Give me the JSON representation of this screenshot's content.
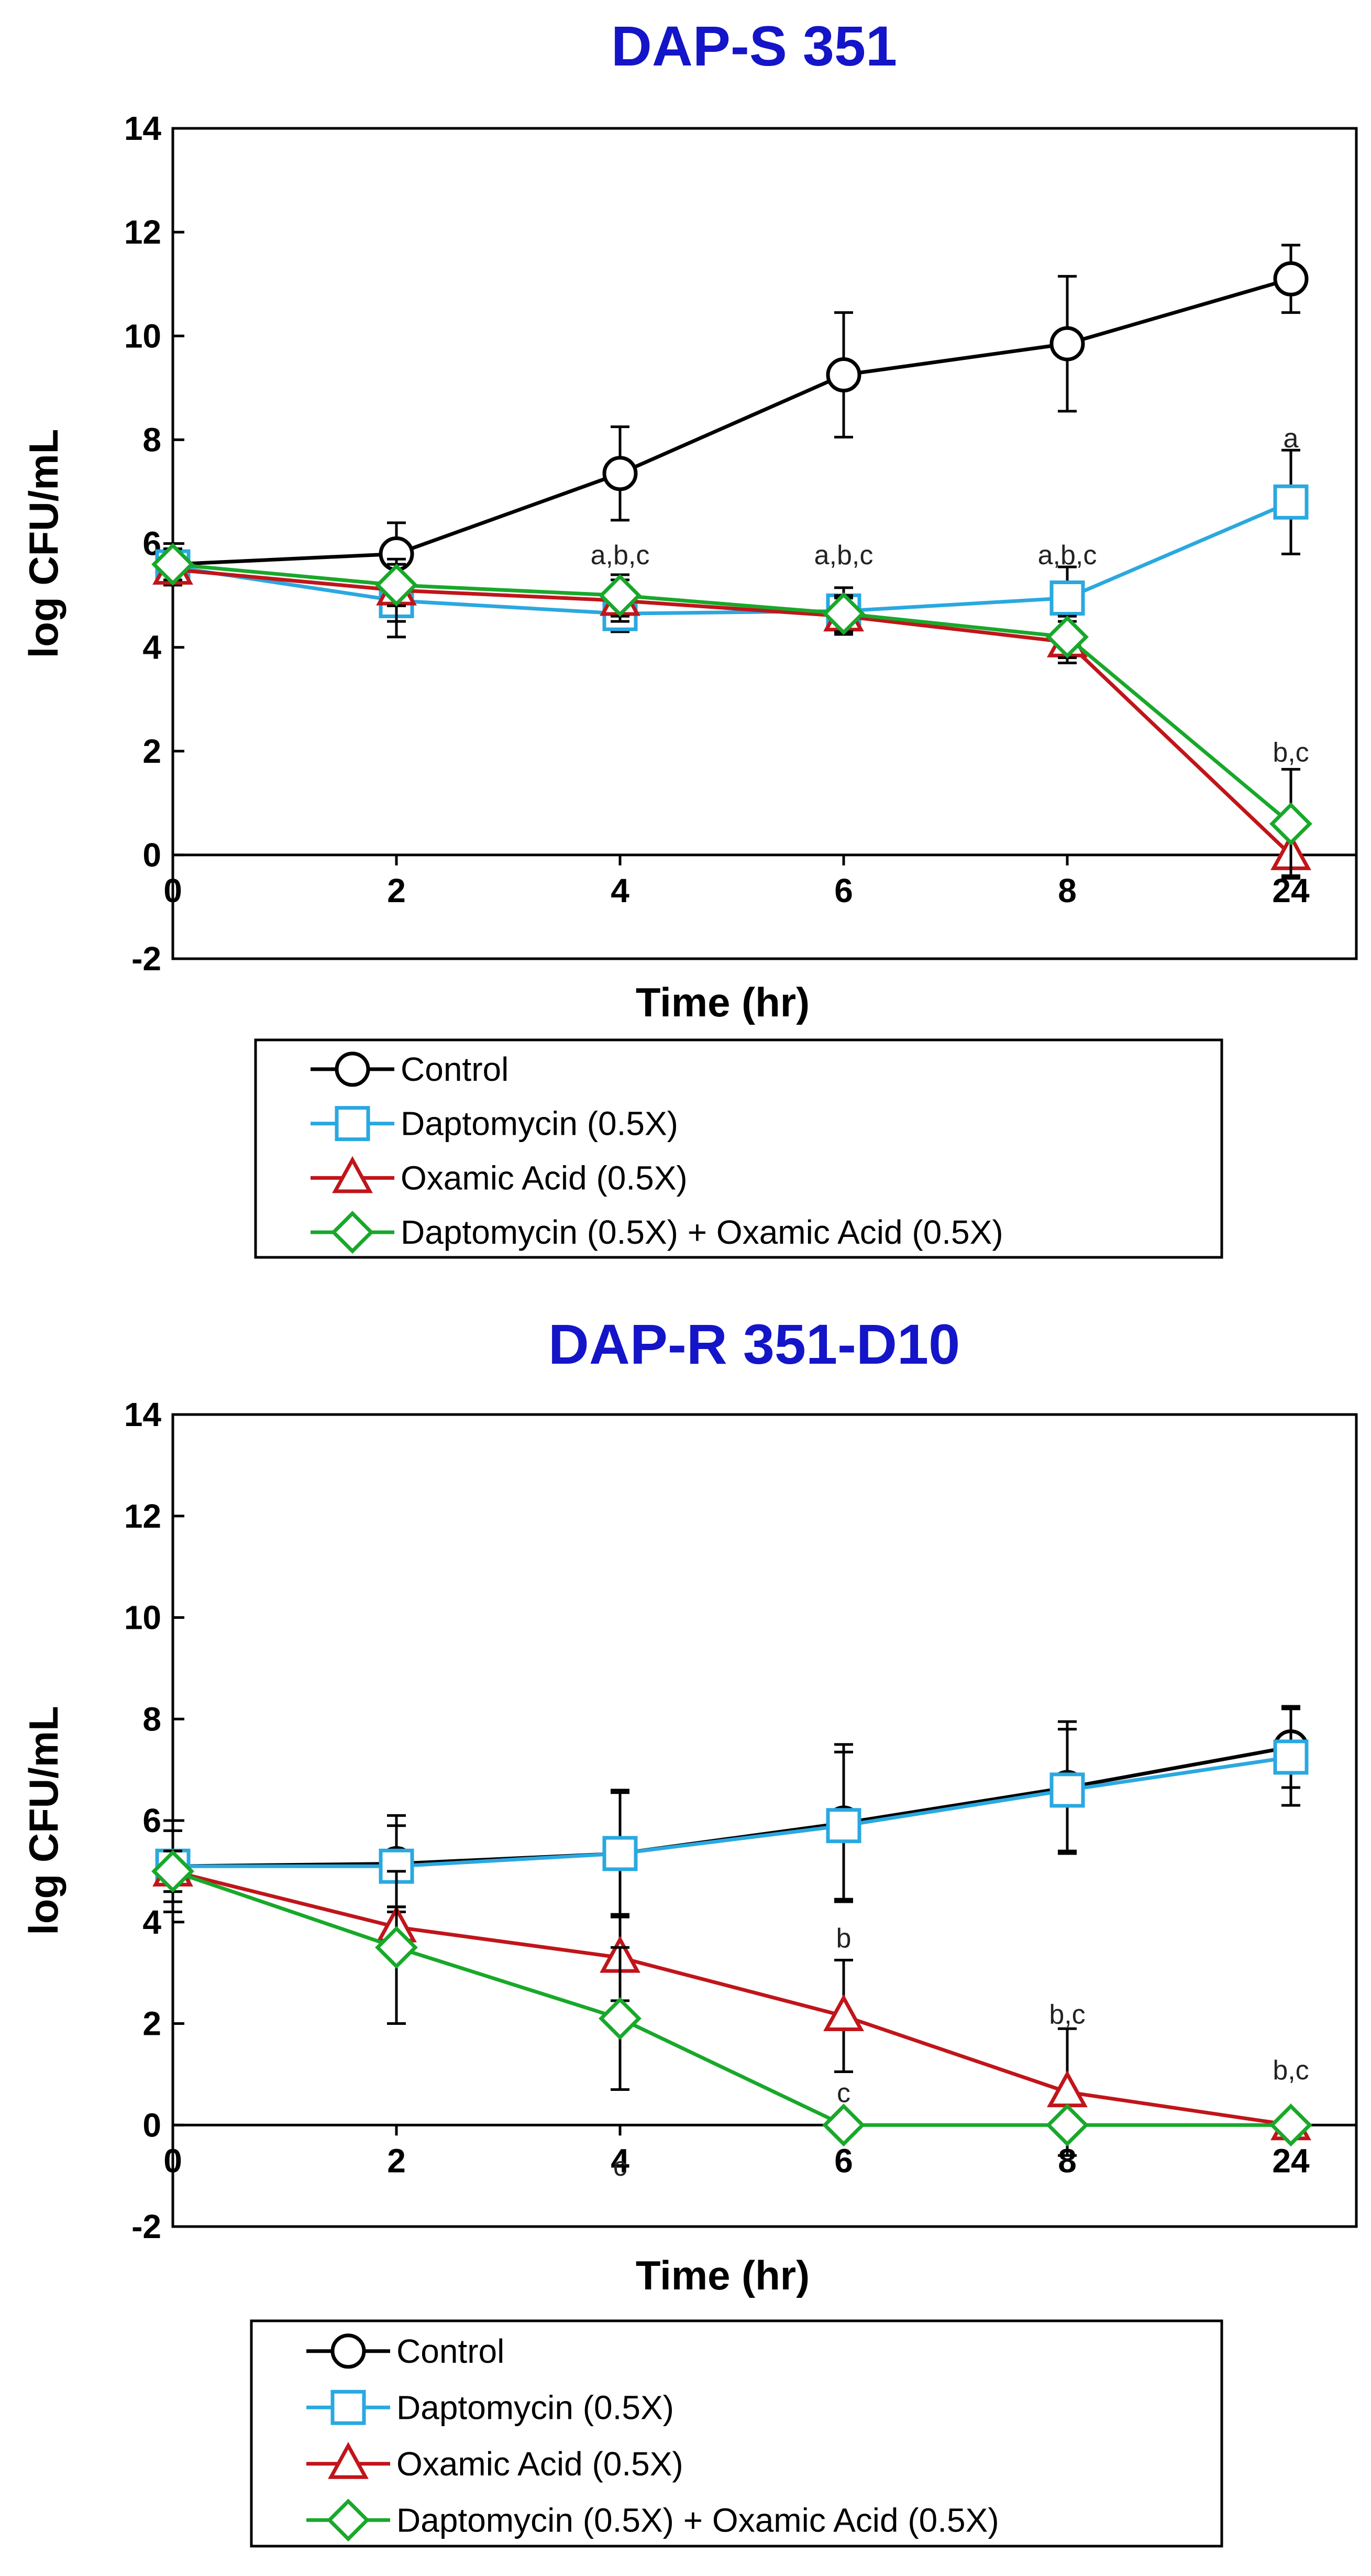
{
  "chart_data": [
    {
      "type": "line",
      "title": "DAP-S 351",
      "xlabel": "Time (hr)",
      "ylabel": "log CFU/mL",
      "categories": [
        "0",
        "2",
        "4",
        "6",
        "8",
        "24"
      ],
      "ylim": [
        -2,
        14
      ],
      "yticks": [
        "-2",
        "0",
        "2",
        "4",
        "6",
        "8",
        "10",
        "12",
        "14"
      ],
      "series": [
        {
          "name": "Control",
          "color": "#000000",
          "marker": "circle",
          "values": [
            5.6,
            5.8,
            7.35,
            9.25,
            9.85,
            11.1
          ],
          "errors": [
            0.4,
            0.6,
            0.9,
            1.2,
            1.3,
            0.65
          ]
        },
        {
          "name": "Daptomycin (0.5X)",
          "color": "#2aa8e0",
          "marker": "square",
          "values": [
            5.55,
            4.9,
            4.65,
            4.7,
            4.95,
            6.8
          ],
          "errors": [
            0.3,
            0.7,
            0.35,
            0.45,
            0.6,
            1.0
          ]
        },
        {
          "name": "Oxamic Acid (0.5X)",
          "color": "#c0151a",
          "marker": "triangle",
          "values": [
            5.5,
            5.1,
            4.9,
            4.6,
            4.1,
            0.0
          ],
          "errors": [
            0.3,
            0.6,
            0.4,
            0.35,
            0.4,
            0.4
          ]
        },
        {
          "name": "Daptomycin (0.5X) + Oxamic Acid (0.5X)",
          "color": "#18a82a",
          "marker": "diamond",
          "values": [
            5.6,
            5.2,
            5.0,
            4.65,
            4.2,
            0.6
          ],
          "errors": [
            0.3,
            0.4,
            0.4,
            0.35,
            0.4,
            1.05
          ]
        }
      ],
      "annotations": [
        {
          "x": "4",
          "y": 5.6,
          "text": "a,b,c"
        },
        {
          "x": "6",
          "y": 5.6,
          "text": "a,b,c"
        },
        {
          "x": "8",
          "y": 5.6,
          "text": "a,b,c"
        },
        {
          "x": "24",
          "y": 7.85,
          "text": "a"
        },
        {
          "x": "24",
          "y": 1.8,
          "text": "b,c"
        }
      ],
      "legend": [
        "Control",
        "Daptomycin (0.5X)",
        "Oxamic Acid (0.5X)",
        "Daptomycin (0.5X) + Oxamic Acid (0.5X)"
      ]
    },
    {
      "type": "line",
      "title": "DAP-R 351-D10",
      "xlabel": "Time (hr)",
      "ylabel": "log CFU/mL",
      "categories": [
        "0",
        "2",
        "4",
        "6",
        "8",
        "24"
      ],
      "ylim": [
        -2,
        14
      ],
      "yticks": [
        "-2",
        "0",
        "2",
        "4",
        "6",
        "8",
        "10",
        "12",
        "14"
      ],
      "series": [
        {
          "name": "Control",
          "color": "#000000",
          "marker": "circle",
          "values": [
            5.1,
            5.15,
            5.35,
            5.95,
            6.65,
            7.45
          ],
          "errors": [
            0.9,
            0.95,
            1.25,
            1.55,
            1.3,
            0.8
          ]
        },
        {
          "name": "Daptomycin (0.5X)",
          "color": "#2aa8e0",
          "marker": "square",
          "values": [
            5.1,
            5.1,
            5.35,
            5.9,
            6.6,
            7.25
          ],
          "errors": [
            0.7,
            0.8,
            1.2,
            1.45,
            1.2,
            0.95
          ]
        },
        {
          "name": "Oxamic Acid (0.5X)",
          "color": "#c0151a",
          "marker": "triangle",
          "values": [
            5.0,
            3.9,
            3.3,
            2.15,
            0.65,
            0.0
          ],
          "errors": [
            0.4,
            0.4,
            0.85,
            1.1,
            1.25,
            0.1
          ]
        },
        {
          "name": "Daptomycin (0.5X) + Oxamic Acid (0.5X)",
          "color": "#18a82a",
          "marker": "diamond",
          "values": [
            5.0,
            3.5,
            2.1,
            0.0,
            0.0,
            0.0
          ],
          "errors": [
            0.4,
            1.5,
            1.4,
            0.0,
            0.0,
            0.0
          ]
        }
      ],
      "annotations": [
        {
          "x": "4",
          "y": -1.0,
          "text": "c"
        },
        {
          "x": "6",
          "y": 0.45,
          "text": "c"
        },
        {
          "x": "6",
          "y": 3.5,
          "text": "b"
        },
        {
          "x": "8",
          "y": 2.0,
          "text": "b,c"
        },
        {
          "x": "24",
          "y": 0.9,
          "text": "b,c"
        }
      ],
      "legend": [
        "Control",
        "Daptomycin (0.5X)",
        "Oxamic Acid (0.5X)",
        "Daptomycin (0.5X) + Oxamic Acid (0.5X)"
      ]
    }
  ]
}
